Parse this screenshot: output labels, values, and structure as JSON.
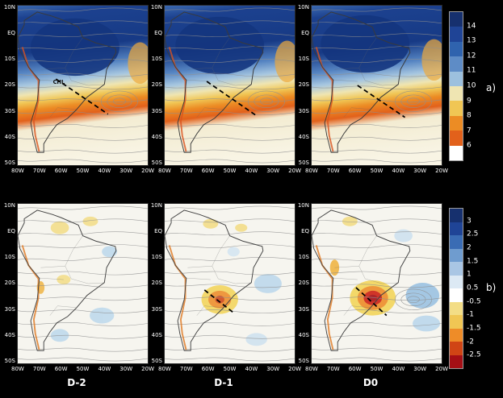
{
  "figure": {
    "panel_columns": [
      "D-2",
      "D-1",
      "D0"
    ],
    "row_a_label": "a)",
    "row_b_label": "b)",
    "map_annotation": "CHL"
  },
  "axes": {
    "lat_ticks": [
      "10N",
      "EQ",
      "10S",
      "20S",
      "30S",
      "40S",
      "50S"
    ],
    "lon_ticks": [
      "80W",
      "70W",
      "60W",
      "50W",
      "40W",
      "30W",
      "20W"
    ]
  },
  "colorbars": {
    "a": {
      "ticks": [
        "14",
        "13",
        "12",
        "11",
        "10",
        "9",
        "8",
        "7",
        "6"
      ],
      "colors": [
        "#16306e",
        "#1f4496",
        "#2f63ae",
        "#5e8cc6",
        "#9cc0de",
        "#efe5b2",
        "#f0c654",
        "#ec8c24",
        "#e2611b",
        "#ffffff"
      ]
    },
    "b": {
      "ticks": [
        "3",
        "2.5",
        "2",
        "1.5",
        "1",
        "0.5",
        "-0.5",
        "-1",
        "-1.5",
        "-2",
        "-2.5"
      ],
      "colors": [
        "#16306e",
        "#1f4496",
        "#3a6cb4",
        "#6f9ccf",
        "#a9c6e4",
        "#dce9f4",
        "#ffffff",
        "#f3dd86",
        "#f0c654",
        "#ee8c28",
        "#d04515",
        "#a50f15"
      ]
    }
  },
  "chart_data": {
    "type": "heatmap",
    "layout": "2 rows x 3 columns of South America maps with overlaid streamlines on black background",
    "columns": [
      "D-2",
      "D-1",
      "D0"
    ],
    "lon_ticks": [
      "80W",
      "70W",
      "60W",
      "50W",
      "40W",
      "30W",
      "20W"
    ],
    "lat_ticks": [
      "10N",
      "EQ",
      "10S",
      "20S",
      "30S",
      "40S",
      "50S"
    ],
    "rows": [
      {
        "label": "a)",
        "colorbar_ticks": [
          14,
          13,
          12,
          11,
          10,
          9,
          8,
          7,
          6
        ],
        "colorbar_range": [
          6,
          14
        ],
        "description": "Shaded field (high values deep blue over Amazon/tropical South America, orange band across subtropics ~20S-35S, pale/white south of 35S) with gray streamlines; dashed black line oriented NW-SE near 25S-35S; 'CHL' annotation in left panel"
      },
      {
        "label": "b)",
        "colorbar_ticks": [
          3,
          2.5,
          2,
          1.5,
          1,
          0.5,
          -0.5,
          -1,
          -1.5,
          -2,
          -2.5
        ],
        "colorbar_range": [
          -2.5,
          3
        ],
        "description": "Anomaly field on near-white background with gray streamlines; warm-colored (orange to dark red) core over southeastern South America around 30S,58W intensifying from D-2 to D0; blue (positive colorbar values) patches to the east and north"
      }
    ],
    "annotations": [
      "CHL",
      "dashed frontal line in row a panels",
      "dashed line near anomaly core in row b D-1 and D0 panels"
    ]
  }
}
